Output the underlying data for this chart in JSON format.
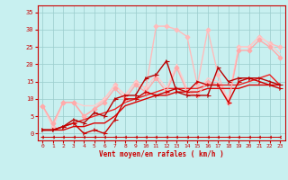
{
  "xlabel": "Vent moyen/en rafales ( km/h )",
  "background_color": "#c8f0f0",
  "grid_color": "#99cccc",
  "xlim": [
    -0.5,
    23.5
  ],
  "ylim": [
    -2,
    37
  ],
  "xticks": [
    0,
    1,
    2,
    3,
    4,
    5,
    6,
    7,
    8,
    9,
    10,
    11,
    12,
    13,
    14,
    15,
    16,
    17,
    18,
    19,
    20,
    21,
    22,
    23
  ],
  "yticks": [
    0,
    5,
    10,
    15,
    20,
    25,
    30,
    35
  ],
  "lines": [
    {
      "x": [
        0,
        1,
        2,
        3,
        4,
        5,
        6,
        7,
        8,
        9,
        10,
        11,
        12,
        13,
        14,
        15,
        16,
        17,
        18,
        19,
        20,
        21,
        22,
        23
      ],
      "y": [
        1,
        1,
        1,
        2,
        2,
        3,
        3,
        5,
        8,
        9,
        10,
        11,
        11,
        12,
        12,
        12,
        13,
        13,
        13,
        13,
        14,
        14,
        14,
        14
      ],
      "color": "#dd0000",
      "linewidth": 1.0,
      "marker": null,
      "markersize": 0,
      "zorder": 3
    },
    {
      "x": [
        0,
        1,
        2,
        3,
        4,
        5,
        6,
        7,
        8,
        9,
        10,
        11,
        12,
        13,
        14,
        15,
        16,
        17,
        18,
        19,
        20,
        21,
        22,
        23
      ],
      "y": [
        1,
        1,
        2,
        3,
        4,
        5,
        6,
        7,
        9,
        10,
        11,
        12,
        13,
        13,
        13,
        13,
        14,
        14,
        14,
        14,
        15,
        16,
        17,
        14
      ],
      "color": "#ee2222",
      "linewidth": 1.0,
      "marker": null,
      "markersize": 0,
      "zorder": 3
    },
    {
      "x": [
        0,
        1,
        2,
        3,
        4,
        5,
        6,
        7,
        8,
        9,
        10,
        11,
        12,
        13,
        14,
        15,
        16,
        17,
        18,
        19,
        20,
        21,
        22,
        23
      ],
      "y": [
        1,
        1,
        2,
        3,
        0,
        1,
        0,
        4,
        10,
        10,
        12,
        11,
        12,
        13,
        12,
        15,
        14,
        14,
        9,
        15,
        16,
        15,
        14,
        13
      ],
      "color": "#cc0000",
      "linewidth": 1.0,
      "marker": "4",
      "markersize": 4,
      "zorder": 5
    },
    {
      "x": [
        0,
        1,
        2,
        3,
        4,
        5,
        6,
        7,
        8,
        9,
        10,
        11,
        12,
        13,
        14,
        15,
        16,
        17,
        18,
        19,
        20,
        21,
        22,
        23
      ],
      "y": [
        1,
        1,
        2,
        4,
        3,
        6,
        5,
        10,
        11,
        11,
        16,
        17,
        21,
        12,
        11,
        11,
        11,
        19,
        15,
        16,
        16,
        16,
        15,
        14
      ],
      "color": "#bb0000",
      "linewidth": 1.0,
      "marker": "4",
      "markersize": 4,
      "zorder": 5
    },
    {
      "x": [
        0,
        1,
        2,
        3,
        4,
        5,
        6,
        7,
        8,
        9,
        10,
        11,
        12,
        13,
        14,
        15,
        16,
        17,
        18,
        19,
        20,
        21,
        22,
        23
      ],
      "y": [
        8,
        3,
        9,
        9,
        5,
        7,
        9,
        13,
        10,
        14,
        12,
        16,
        12,
        19,
        12,
        11,
        15,
        14,
        9,
        24,
        24,
        27,
        25,
        22
      ],
      "color": "#ffaaaa",
      "linewidth": 1.0,
      "marker": "D",
      "markersize": 2.5,
      "zorder": 4
    },
    {
      "x": [
        0,
        1,
        2,
        3,
        4,
        5,
        6,
        7,
        8,
        9,
        10,
        11,
        12,
        13,
        14,
        15,
        16,
        17,
        18,
        19,
        20,
        21,
        22,
        23
      ],
      "y": [
        8,
        2,
        9,
        9,
        5,
        7,
        10,
        14,
        11,
        15,
        13,
        31,
        31,
        30,
        28,
        14,
        30,
        17,
        9,
        25,
        25,
        28,
        26,
        25
      ],
      "color": "#ffbbbb",
      "linewidth": 1.0,
      "marker": "D",
      "markersize": 2.5,
      "zorder": 2
    },
    {
      "x": [
        0,
        1,
        2,
        3,
        4,
        5,
        6,
        7,
        8,
        9,
        10,
        11,
        12,
        13,
        14,
        15,
        16,
        17,
        18,
        19,
        20,
        21,
        22,
        23
      ],
      "y": [
        8,
        2,
        9,
        9,
        8,
        8,
        10,
        14,
        11,
        15,
        13,
        17,
        13,
        20,
        13,
        12,
        16,
        15,
        10,
        25,
        25,
        28,
        26,
        23
      ],
      "color": "#ffcccc",
      "linewidth": 1.0,
      "marker": null,
      "markersize": 0,
      "zorder": 2
    },
    {
      "x": [
        0,
        1,
        2,
        3,
        4,
        5,
        6,
        7,
        8,
        9,
        10,
        11,
        12,
        13,
        14,
        15,
        16,
        17,
        18,
        19,
        20,
        21,
        22,
        23
      ],
      "y": [
        -1,
        -1,
        -1,
        -1,
        -1,
        -1,
        -1,
        -1,
        -1,
        -1,
        -1,
        -1,
        -1,
        -1,
        -1,
        -1,
        -1,
        -1,
        -1,
        -1,
        -1,
        -1,
        -1,
        -1
      ],
      "color": "#cc0000",
      "linewidth": 0.7,
      "marker": "3",
      "markersize": 3,
      "zorder": 6
    }
  ]
}
